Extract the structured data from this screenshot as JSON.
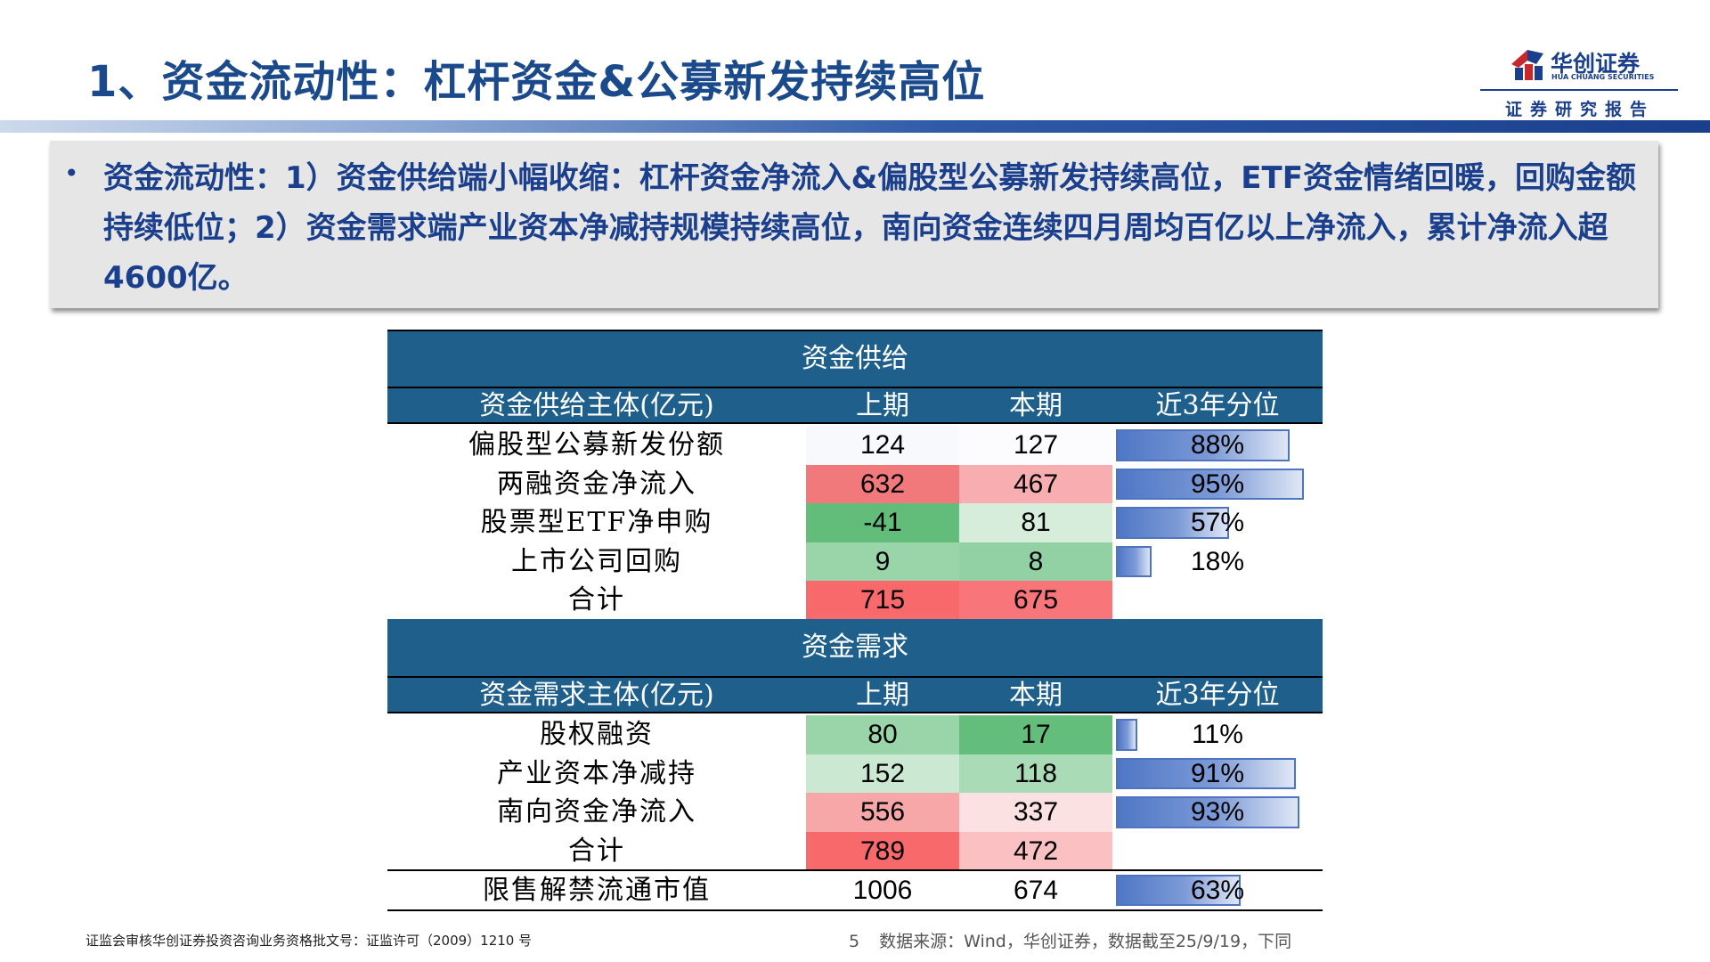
{
  "header": {
    "title": "1、资金流动性：杠杆资金&公募新发持续高位",
    "logo_cn": "华创证券",
    "logo_en": "HUA CHUANG SECURITIES",
    "slogan": "证券研究报告"
  },
  "summary": {
    "bullet": "•",
    "text": "资金流动性：1）资金供给端小幅收缩：杠杆资金净流入&偏股型公募新发持续高位，ETF资金情绪回暖，回购金额持续低位；2）资金需求端产业资本净减持规模持续高位，南向资金连续四月周均百亿以上净流入，累计净流入超4600亿。"
  },
  "supply": {
    "section_title": "资金供给",
    "headers": [
      "资金供给主体(亿元)",
      "上期",
      "本期",
      "近3年分位"
    ],
    "rows": [
      {
        "name": "偏股型公募新发份额",
        "prev": "124",
        "cur": "127",
        "pct": "88%",
        "pct_value": 0.88,
        "prev_color": "#f7f9fc",
        "cur_color": "#fcfcff"
      },
      {
        "name": "两融资金净流入",
        "prev": "632",
        "cur": "467",
        "pct": "95%",
        "pct_value": 0.95,
        "prev_color": "#f2797b",
        "cur_color": "#f8aeb0"
      },
      {
        "name": "股票型ETF净申购",
        "prev": "-41",
        "cur": "81",
        "pct": "57%",
        "pct_value": 0.57,
        "prev_color": "#62bd7b",
        "cur_color": "#d6eddc"
      },
      {
        "name": "上市公司回购",
        "prev": "9",
        "cur": "8",
        "pct": "18%",
        "pct_value": 0.18,
        "prev_color": "#9ad4a9",
        "cur_color": "#92d1a3"
      },
      {
        "name": "合计",
        "prev": "715",
        "cur": "675",
        "pct": "",
        "pct_value": null,
        "prev_color": "#f8696b",
        "cur_color": "#f8767a"
      }
    ]
  },
  "demand": {
    "section_title": "资金需求",
    "headers": [
      "资金需求主体(亿元)",
      "上期",
      "本期",
      "近3年分位"
    ],
    "rows": [
      {
        "name": "股权融资",
        "prev": "80",
        "cur": "17",
        "pct": "11%",
        "pct_value": 0.11,
        "prev_color": "#9ad4a9",
        "cur_color": "#63be7b"
      },
      {
        "name": "产业资本净减持",
        "prev": "152",
        "cur": "118",
        "pct": "91%",
        "pct_value": 0.91,
        "prev_color": "#cbe8d3",
        "cur_color": "#a9dbb6"
      },
      {
        "name": "南向资金净流入",
        "prev": "556",
        "cur": "337",
        "pct": "93%",
        "pct_value": 0.93,
        "prev_color": "#f8a7a9",
        "cur_color": "#fce1e3"
      },
      {
        "name": "合计",
        "prev": "789",
        "cur": "472",
        "pct": "",
        "pct_value": null,
        "prev_color": "#f8696b",
        "cur_color": "#fbc0c2"
      }
    ]
  },
  "unlock": {
    "name": "限售解禁流通市值",
    "prev": "1006",
    "cur": "674",
    "pct": "63%",
    "pct_value": 0.63
  },
  "footer": {
    "left": "证监会审核华创证券投资咨询业务资格批文号：证监许可（2009）1210 号",
    "page": "5",
    "source": "数据来源：Wind，华创证券，数据截至25/9/19，下同"
  },
  "colors": {
    "brand_blue": "#1a3f8c",
    "table_header": "#1f5f8b"
  }
}
